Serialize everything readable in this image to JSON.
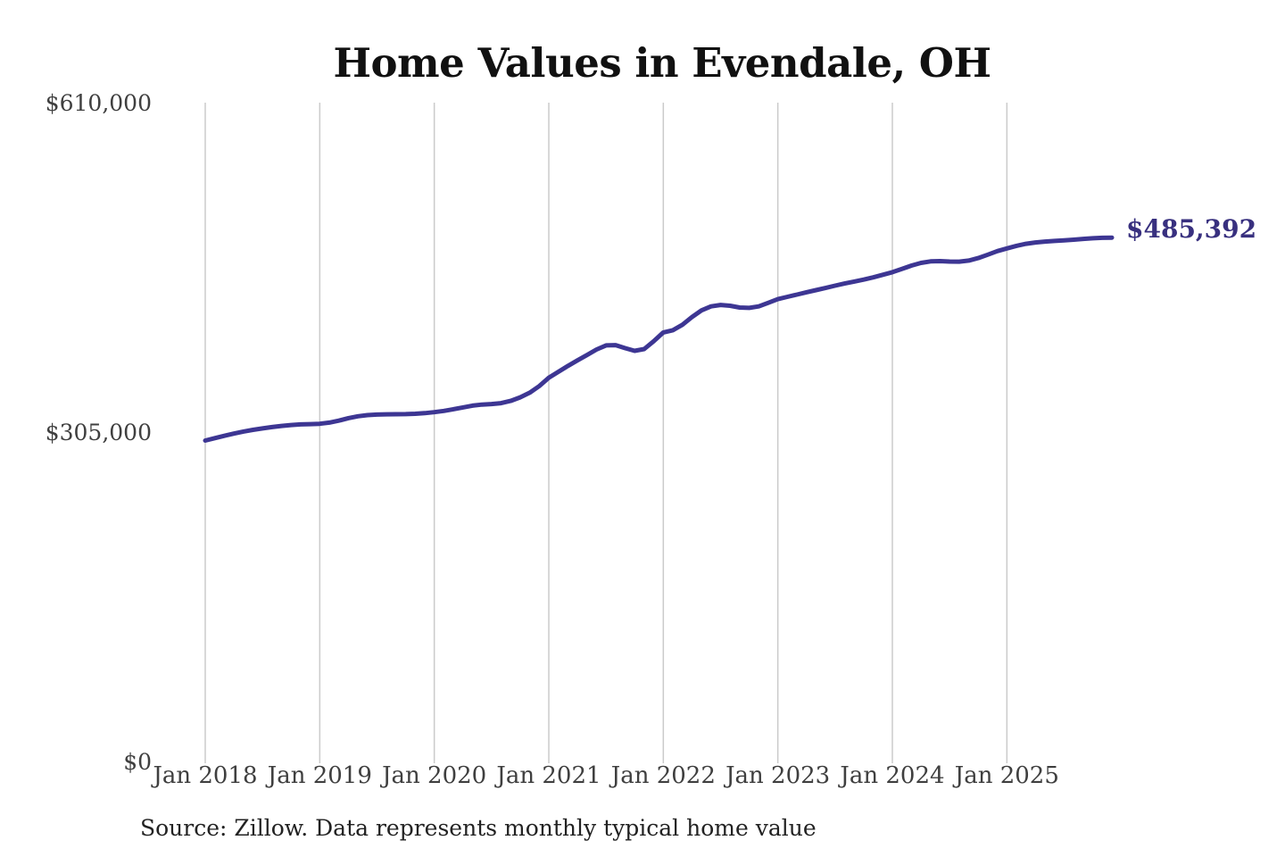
{
  "page": {
    "title": "Home Values in Evendale, OH",
    "source_note": "Source: Zillow. Data represents monthly typical home value"
  },
  "colors": {
    "background": "#ffffff",
    "title_text": "#111111",
    "axis_text": "#3f3f3f",
    "grid_line": "#cbcbcb",
    "line": "#3d3693",
    "annotation": "#38307f"
  },
  "chart_data": {
    "type": "line",
    "title": "Home Values in Evendale, OH",
    "source": "Source: Zillow. Data represents monthly typical home value",
    "x_unit": "month",
    "x_range": [
      "Jan 2018",
      "Dec 2025"
    ],
    "x_tick_labels": [
      "Jan 2018",
      "Jan 2019",
      "Jan 2020",
      "Jan 2021",
      "Jan 2022",
      "Jan 2023",
      "Jan 2024",
      "Jan 2025"
    ],
    "y_tick_labels": [
      "$0",
      "$305,000",
      "$610,000"
    ],
    "y_tick_values": [
      0,
      305000,
      610000
    ],
    "ylim": [
      0,
      610000
    ],
    "grid": "vertical-only",
    "legend": "none",
    "line_color": "#3d3693",
    "end_label": "$485,392",
    "end_value": 485392,
    "series": [
      {
        "name": "Typical home value",
        "values": [
          298000,
          300200,
          302400,
          304400,
          306300,
          307900,
          309200,
          310400,
          311500,
          312300,
          312900,
          313200,
          313500,
          314600,
          316400,
          318700,
          320400,
          321500,
          322000,
          322200,
          322300,
          322400,
          322700,
          323300,
          324200,
          325400,
          326900,
          328600,
          330200,
          331200,
          331700,
          332500,
          334600,
          337900,
          342200,
          348300,
          356000,
          361500,
          366900,
          372000,
          377000,
          382100,
          385900,
          386100,
          383300,
          380800,
          382500,
          389700,
          397800,
          399900,
          404900,
          412000,
          418200,
          421900,
          423200,
          422500,
          420800,
          420500,
          421900,
          425200,
          428600,
          430700,
          432800,
          434900,
          436900,
          438900,
          441000,
          443000,
          444800,
          446600,
          448700,
          451100,
          453500,
          456400,
          459600,
          462000,
          463400,
          463700,
          463300,
          463200,
          464200,
          466500,
          469600,
          472900,
          475400,
          477800,
          479700,
          480900,
          481700,
          482300,
          482900,
          483500,
          484200,
          484800,
          485200,
          485392
        ]
      }
    ]
  }
}
